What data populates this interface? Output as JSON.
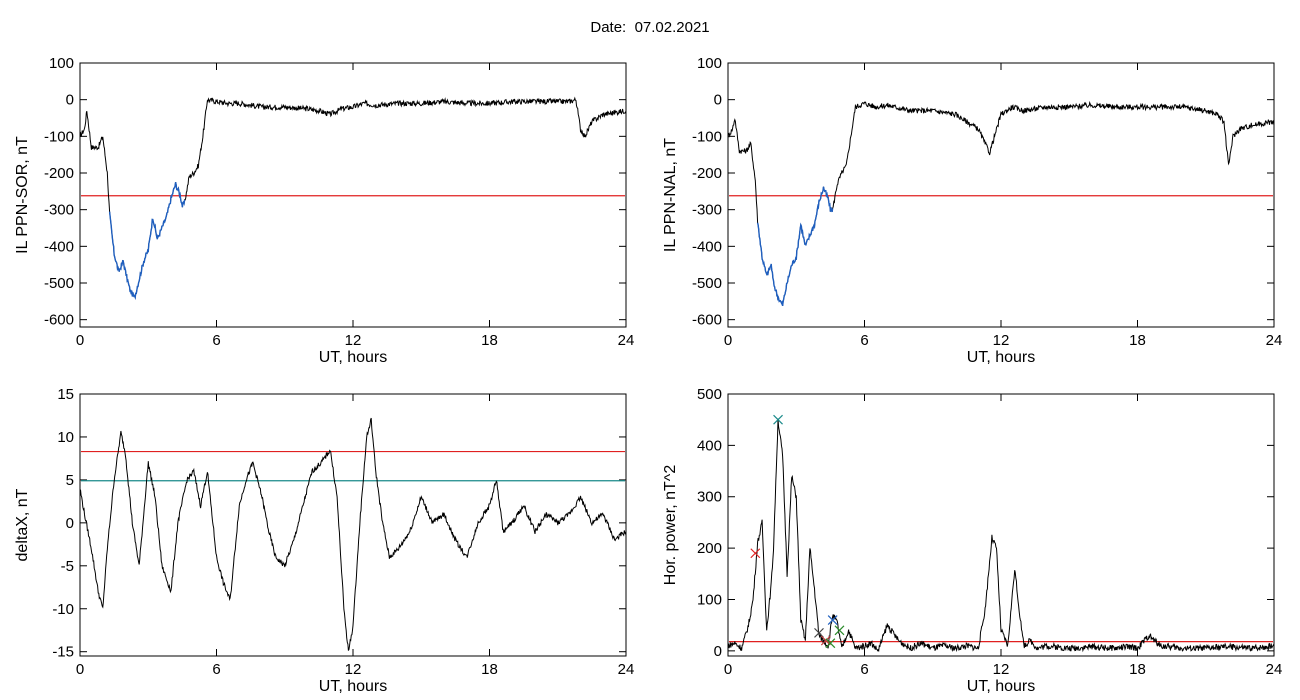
{
  "date_label": "Date:",
  "date_value": "07.02.2021",
  "colors": {
    "trace": "#000000",
    "highlight": "#1f5fbf",
    "red_line": "#e02020",
    "teal_line": "#1a8a8a"
  },
  "chart_data": [
    {
      "id": "il-sor",
      "type": "line",
      "xlabel": "UT, hours",
      "ylabel": "IL PPN-SOR, nT",
      "xlim": [
        0,
        24
      ],
      "ylim": [
        -620,
        100
      ],
      "xticks": [
        0,
        6,
        12,
        18,
        24
      ],
      "yticks": [
        100,
        0,
        -100,
        -200,
        -300,
        -400,
        -500,
        -600
      ],
      "hlines": [
        {
          "y": -262,
          "color": "red"
        }
      ],
      "highlight_range": [
        1.3,
        4.6
      ],
      "x": [
        0,
        0.2,
        0.3,
        0.5,
        0.8,
        1.0,
        1.2,
        1.3,
        1.5,
        1.7,
        1.9,
        2.0,
        2.2,
        2.4,
        2.6,
        2.8,
        3.0,
        3.2,
        3.4,
        3.6,
        3.8,
        4.0,
        4.2,
        4.4,
        4.5,
        4.6,
        4.8,
        5.0,
        5.2,
        5.4,
        5.6,
        6,
        6.5,
        7,
        8,
        9,
        10,
        10.5,
        11,
        11.5,
        12,
        12.5,
        13,
        14,
        15,
        16,
        17,
        18,
        19,
        20,
        21,
        21.5,
        21.8,
        22.0,
        22.2,
        22.5,
        23,
        24
      ],
      "y": [
        -100,
        -80,
        -30,
        -130,
        -130,
        -100,
        -200,
        -310,
        -420,
        -470,
        -440,
        -470,
        -520,
        -540,
        -490,
        -440,
        -410,
        -320,
        -380,
        -350,
        -320,
        -270,
        -230,
        -260,
        -290,
        -280,
        -210,
        -200,
        -180,
        -100,
        0,
        -5,
        -10,
        -10,
        -20,
        -20,
        -25,
        -30,
        -40,
        -25,
        -20,
        -10,
        -15,
        -10,
        -10,
        -5,
        -10,
        -10,
        -5,
        -5,
        -5,
        -5,
        0,
        -80,
        -100,
        -60,
        -40,
        -30
      ]
    },
    {
      "id": "il-nal",
      "type": "line",
      "xlabel": "UT, hours",
      "ylabel": "IL PPN-NAL, nT",
      "xlim": [
        0,
        24
      ],
      "ylim": [
        -620,
        100
      ],
      "xticks": [
        0,
        6,
        12,
        18,
        24
      ],
      "yticks": [
        100,
        0,
        -100,
        -200,
        -300,
        -400,
        -500,
        -600
      ],
      "hlines": [
        {
          "y": -262,
          "color": "red"
        }
      ],
      "highlight_range": [
        1.3,
        4.6
      ],
      "x": [
        0,
        0.2,
        0.3,
        0.5,
        0.8,
        1.0,
        1.2,
        1.3,
        1.5,
        1.7,
        1.9,
        2.0,
        2.2,
        2.4,
        2.6,
        2.8,
        3.0,
        3.2,
        3.4,
        3.6,
        3.8,
        4.0,
        4.2,
        4.4,
        4.5,
        4.6,
        4.8,
        5.0,
        5.2,
        5.4,
        5.6,
        6,
        6.5,
        7,
        8,
        9,
        10,
        10.5,
        11,
        11.5,
        12,
        12.5,
        13,
        14,
        15,
        16,
        17,
        18,
        19,
        20,
        21,
        21.5,
        21.8,
        22.0,
        22.2,
        22.5,
        23,
        24
      ],
      "y": [
        -100,
        -80,
        -50,
        -140,
        -140,
        -120,
        -220,
        -330,
        -430,
        -480,
        -450,
        -500,
        -540,
        -560,
        -500,
        -450,
        -430,
        -340,
        -400,
        -370,
        -340,
        -280,
        -240,
        -270,
        -300,
        -300,
        -230,
        -200,
        -180,
        -100,
        -20,
        -10,
        -20,
        -15,
        -30,
        -30,
        -40,
        -60,
        -80,
        -145,
        -40,
        -20,
        -30,
        -20,
        -20,
        -15,
        -20,
        -20,
        -20,
        -20,
        -30,
        -40,
        -60,
        -180,
        -100,
        -80,
        -70,
        -60
      ]
    },
    {
      "id": "delta-x",
      "type": "line",
      "xlabel": "UT, hours",
      "ylabel": "deltaX, nT",
      "xlim": [
        0,
        24
      ],
      "ylim": [
        -15.5,
        15
      ],
      "xticks": [
        0,
        6,
        12,
        18,
        24
      ],
      "yticks": [
        15,
        10,
        5,
        0,
        -5,
        -10,
        -15
      ],
      "hlines": [
        {
          "y": 8.3,
          "color": "red"
        },
        {
          "y": 4.9,
          "color": "teal"
        }
      ],
      "x": [
        0,
        0.2,
        0.5,
        0.8,
        1.0,
        1.2,
        1.5,
        1.8,
        2.0,
        2.3,
        2.6,
        3.0,
        3.3,
        3.6,
        4.0,
        4.3,
        4.7,
        5.0,
        5.3,
        5.6,
        6.0,
        6.3,
        6.6,
        7.0,
        7.3,
        7.6,
        8.0,
        8.3,
        8.6,
        9.0,
        9.4,
        9.8,
        10.2,
        10.6,
        11.0,
        11.3,
        11.6,
        11.8,
        12.0,
        12.3,
        12.6,
        12.8,
        13.0,
        13.3,
        13.6,
        14.0,
        14.5,
        15.0,
        15.5,
        16.0,
        16.5,
        17.0,
        17.5,
        18.0,
        18.3,
        18.6,
        19.0,
        19.5,
        20.0,
        20.5,
        21.0,
        21.5,
        22.0,
        22.5,
        23.0,
        23.5,
        24.0
      ],
      "y": [
        4,
        1,
        -3,
        -8,
        -10,
        -3,
        5,
        10.5,
        8,
        0,
        -5,
        7,
        3,
        -5,
        -8,
        0,
        5,
        6,
        2,
        6,
        -4,
        -7,
        -9,
        2,
        5,
        7,
        3,
        -1,
        -4,
        -5,
        -2,
        2,
        6,
        7,
        8.5,
        3,
        -10,
        -15,
        -12,
        0,
        10,
        12,
        6,
        0,
        -4,
        -3,
        -1,
        3,
        0,
        1,
        -2,
        -4,
        0,
        2,
        5,
        -1,
        0,
        2,
        -1,
        1,
        0,
        1,
        3,
        0,
        1,
        -2,
        -1
      ]
    },
    {
      "id": "hor-power",
      "type": "line",
      "xlabel": "UT, hours",
      "ylabel": "Hor. power, nT^2",
      "xlim": [
        0,
        24
      ],
      "ylim": [
        -10,
        500
      ],
      "xticks": [
        0,
        6,
        12,
        18,
        24
      ],
      "yticks": [
        500,
        400,
        300,
        200,
        100,
        0
      ],
      "hlines": [
        {
          "y": 18,
          "color": "red"
        }
      ],
      "x": [
        0,
        0.3,
        0.6,
        0.9,
        1.1,
        1.3,
        1.5,
        1.7,
        1.9,
        2.0,
        2.2,
        2.4,
        2.6,
        2.8,
        3.0,
        3.2,
        3.4,
        3.6,
        3.8,
        4.0,
        4.2,
        4.4,
        4.6,
        4.8,
        5.0,
        5.3,
        5.6,
        6.0,
        6.3,
        6.6,
        7.0,
        7.5,
        8.0,
        8.5,
        9.0,
        9.5,
        10.0,
        10.5,
        11.0,
        11.3,
        11.6,
        11.8,
        12.0,
        12.3,
        12.6,
        12.8,
        13.0,
        13.3,
        13.6,
        14.0,
        15.0,
        16.0,
        17.0,
        17.5,
        18.0,
        18.5,
        19.0,
        20.0,
        21.0,
        22.0,
        23.0,
        24.0
      ],
      "y": [
        10,
        15,
        5,
        50,
        100,
        210,
        250,
        40,
        130,
        200,
        450,
        380,
        150,
        340,
        300,
        60,
        20,
        200,
        120,
        30,
        20,
        10,
        70,
        55,
        5,
        40,
        5,
        10,
        15,
        0,
        50,
        20,
        5,
        15,
        5,
        10,
        5,
        10,
        5,
        80,
        220,
        200,
        40,
        10,
        160,
        80,
        10,
        20,
        5,
        10,
        5,
        8,
        5,
        8,
        5,
        30,
        10,
        5,
        5,
        8,
        5,
        10
      ],
      "markers": [
        {
          "x": 1.2,
          "y": 190,
          "symbol": "x",
          "color": "#e02020"
        },
        {
          "x": 2.2,
          "y": 450,
          "symbol": "x",
          "color": "#1a8a8a"
        },
        {
          "x": 4.0,
          "y": 35,
          "symbol": "x",
          "color": "#444444"
        },
        {
          "x": 4.3,
          "y": 20,
          "symbol": "x",
          "color": "#c04040"
        },
        {
          "x": 4.6,
          "y": 60,
          "symbol": "x",
          "color": "#1f5fbf"
        },
        {
          "x": 4.9,
          "y": 40,
          "symbol": "x",
          "color": "#2a8a2a"
        },
        {
          "x": 4.5,
          "y": 15,
          "symbol": "x",
          "color": "#2a8a2a"
        }
      ]
    }
  ]
}
